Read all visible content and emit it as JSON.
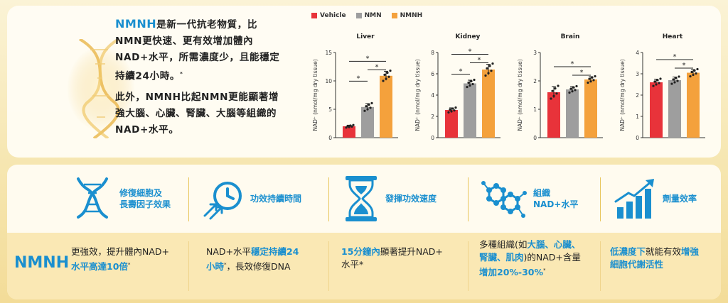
{
  "intro": {
    "brand": "NMNH",
    "line1": "是新一代抗老物質，比",
    "line2": "NMN更快速、更有效增加體內",
    "line3": "NAD+水平，所需濃度少，且能穩定",
    "line4": "持續24小時。",
    "line4_sup": "*",
    "line5": "此外，NMNH比起NMN更能顯著增",
    "line6": "強大腦、心臟、腎臟、大腦等組織的",
    "line7": "NAD+水平。"
  },
  "legend": [
    {
      "label": "Vehicle",
      "color": "#e8333a"
    },
    {
      "label": "NMN",
      "color": "#9e9e9e"
    },
    {
      "label": "NMNH",
      "color": "#f4a13c"
    }
  ],
  "colors": {
    "vehicle": "#e8333a",
    "nmn": "#9e9e9e",
    "nmnh": "#f4a13c",
    "brand": "#1a8fcf"
  },
  "chart_data": [
    {
      "type": "bar",
      "title": "Liver",
      "ylabel": "NAD⁺ (nmol/mg dry tissue)",
      "categories": [
        "Vehicle",
        "NMN",
        "NMNH"
      ],
      "values": [
        2.0,
        5.4,
        10.9
      ],
      "errors": [
        0.2,
        0.6,
        0.8
      ],
      "ylim": [
        0,
        15
      ],
      "yticks": [
        "0",
        "5",
        "10",
        "15"
      ],
      "significance": [
        "*",
        "*",
        "*"
      ]
    },
    {
      "type": "bar",
      "title": "Kidney",
      "ylabel": "NAD⁺ (nmol/mg dry tissue)",
      "categories": [
        "Vehicle",
        "NMN",
        "NMNH"
      ],
      "values": [
        2.6,
        5.1,
        6.4
      ],
      "errors": [
        0.2,
        0.3,
        0.5
      ],
      "ylim": [
        0,
        8
      ],
      "yticks": [
        "0",
        "2",
        "4",
        "6",
        "8"
      ],
      "significance": [
        "*",
        "*",
        "*"
      ]
    },
    {
      "type": "bar",
      "title": "Brain",
      "ylabel": "NAD⁺ (nmol/mg dry tissue)",
      "categories": [
        "Vehicle",
        "NMN",
        "NMNH"
      ],
      "values": [
        1.6,
        1.7,
        2.05
      ],
      "errors": [
        0.2,
        0.1,
        0.1
      ],
      "ylim": [
        0,
        3
      ],
      "yticks": [
        "0",
        "1",
        "2",
        "3"
      ],
      "significance": [
        "*",
        "*"
      ]
    },
    {
      "type": "bar",
      "title": "Heart",
      "ylabel": "NAD⁺ (nmol/mg dry tissue)",
      "categories": [
        "Vehicle",
        "NMN",
        "NMNH"
      ],
      "values": [
        2.6,
        2.7,
        3.05
      ],
      "errors": [
        0.15,
        0.15,
        0.15
      ],
      "ylim": [
        0,
        4
      ],
      "yticks": [
        "0",
        "1",
        "2",
        "3",
        "4"
      ],
      "significance": [
        "*",
        "*"
      ]
    }
  ],
  "features": [
    {
      "icon": "dna-icon",
      "line1": "修復細胞及",
      "line2": "長壽因子效果"
    },
    {
      "icon": "clock-arrows-icon",
      "line1": "功效持續時間",
      "line2": ""
    },
    {
      "icon": "hourglass-icon",
      "line1": "發揮功效速度",
      "line2": ""
    },
    {
      "icon": "molecule-icon",
      "line1": "組織",
      "line2": "NAD+水平"
    },
    {
      "icon": "growth-bars-icon",
      "line1": "劑量效率",
      "line2": ""
    }
  ],
  "row": {
    "label": "NMNH",
    "cell1": {
      "a": "更強效，提升體內NAD+",
      "b": "水平高達10倍",
      "sup": "*"
    },
    "cell2": {
      "a": "NAD+水平",
      "a_hl": "穩定持續24",
      "b_hl": "小時",
      "b_sup": "*",
      "b": "，長效修復DNA"
    },
    "cell3": {
      "a_hl": "15分鐘內",
      "a": "顯著提升NAD+",
      "b": "水平*"
    },
    "cell4": {
      "a": "多種組織(如",
      "a_hl": "大腦、心臟、",
      "b_hl": "腎臟、肌肉",
      "b": ")的NAD+含量",
      "c_hl": "增加20%-30%",
      "c_sup": "*"
    },
    "cell5": {
      "a_hl": "低濃度下",
      "a": "就能有效",
      "a_hl2": "增強",
      "b_hl": "細胞代謝活性"
    }
  }
}
